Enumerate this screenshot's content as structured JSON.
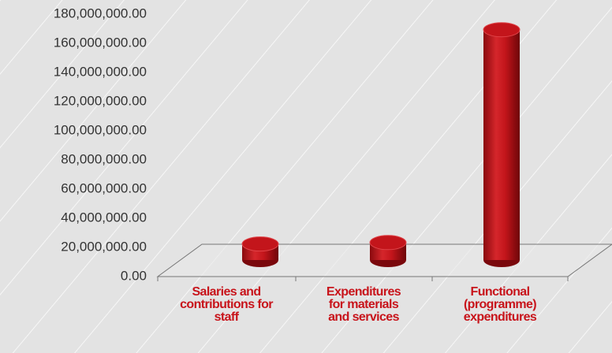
{
  "chart_data": {
    "type": "bar",
    "categories": [
      "Salaries and contributions for staff",
      "Expenditures for materials and services",
      "Functional (programme) expenditures"
    ],
    "values": [
      11000000,
      12000000,
      158000000
    ],
    "color": "#c3151b",
    "ylim": [
      0,
      180000000
    ],
    "yticks": [
      {
        "value": 0,
        "label": "0.00"
      },
      {
        "value": 20000000,
        "label": "20,000,000.00"
      },
      {
        "value": 40000000,
        "label": "40,000,000.00"
      },
      {
        "value": 60000000,
        "label": "60,000,000.00"
      },
      {
        "value": 80000000,
        "label": "80,000,000.00"
      },
      {
        "value": 100000000,
        "label": "100,000,000.00"
      },
      {
        "value": 120000000,
        "label": "120,000,000.00"
      },
      {
        "value": 140000000,
        "label": "140,000,000.00"
      },
      {
        "value": 160000000,
        "label": "160,000,000.00"
      },
      {
        "value": 180000000,
        "label": "180,000,000.00"
      }
    ]
  }
}
